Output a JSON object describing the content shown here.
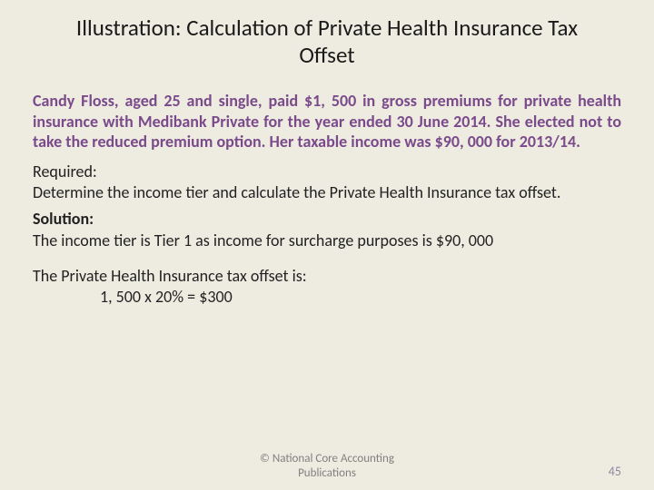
{
  "title": "Illustration: Calculation of Private Health Insurance Tax Offset",
  "scenario": "Candy Floss, aged 25 and single, paid $1, 500 in gross premiums for private health insurance with Medibank Private for the year ended 30 June 2014.  She elected not to take the reduced premium option.  Her taxable income was $90, 000 for 2013/14.",
  "required_label": "Required:",
  "required_body": "Determine the income tier and calculate the Private Health Insurance tax offset.",
  "solution_label": "Solution:",
  "solution_body": "The income tier is Tier 1 as income for surcharge purposes is $90, 000",
  "offset_line": "The Private Health Insurance tax offset is:",
  "offset_calc": "1, 500 x 20%   =   $300",
  "copyright": "© National Core Accounting Publications",
  "page_num": "45",
  "colors": {
    "background": "#eeece1",
    "title_text": "#1a1a1a",
    "scenario_text": "#7a4a8a",
    "body_text": "#222222",
    "footer_text": "#808080",
    "pagenum_text": "#8a8aa0"
  },
  "fonts": {
    "title_size_pt": 25,
    "body_size_pt": 18,
    "footer_size_pt": 13,
    "pagenum_size_pt": 14
  }
}
